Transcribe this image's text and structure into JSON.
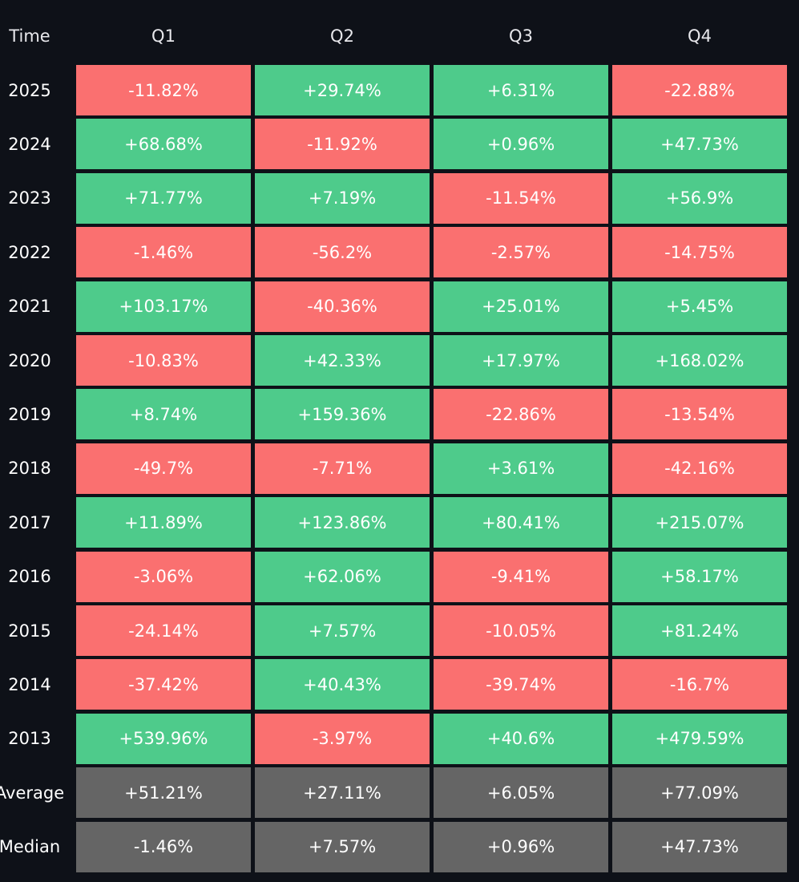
{
  "table": {
    "header": [
      "Time",
      "Q1",
      "Q2",
      "Q3",
      "Q4"
    ],
    "rows": [
      [
        "2025",
        "-11.82%",
        "+29.74%",
        "+6.31%",
        "-22.88%"
      ],
      [
        "2024",
        "+68.68%",
        "-11.92%",
        "+0.96%",
        "+47.73%"
      ],
      [
        "2023",
        "+71.77%",
        "+7.19%",
        "-11.54%",
        "+56.9%"
      ],
      [
        "2022",
        "-1.46%",
        "-56.2%",
        "-2.57%",
        "-14.75%"
      ],
      [
        "2021",
        "+103.17%",
        "-40.36%",
        "+25.01%",
        "+5.45%"
      ],
      [
        "2020",
        "-10.83%",
        "+42.33%",
        "+17.97%",
        "+168.02%"
      ],
      [
        "2019",
        "+8.74%",
        "+159.36%",
        "-22.86%",
        "-13.54%"
      ],
      [
        "2018",
        "-49.7%",
        "-7.71%",
        "+3.61%",
        "-42.16%"
      ],
      [
        "2017",
        "+11.89%",
        "+123.86%",
        "+80.41%",
        "+215.07%"
      ],
      [
        "2016",
        "-3.06%",
        "+62.06%",
        "-9.41%",
        "+58.17%"
      ],
      [
        "2015",
        "-24.14%",
        "+7.57%",
        "-10.05%",
        "+81.24%"
      ],
      [
        "2014",
        "-37.42%",
        "+40.43%",
        "-39.74%",
        "-16.7%"
      ],
      [
        "2013",
        "+539.96%",
        "-3.97%",
        "+40.6%",
        "+479.59%"
      ]
    ],
    "summary_rows": [
      [
        "Average",
        "+51.21%",
        "+27.11%",
        "+6.05%",
        "+77.09%"
      ],
      [
        "Median",
        "-1.46%",
        "+7.57%",
        "+0.96%",
        "+47.73%"
      ]
    ]
  },
  "colors": {
    "positive": "#4ecb8b",
    "negative": "#fa7070",
    "summary": "#656565",
    "background": "#0e1118"
  }
}
